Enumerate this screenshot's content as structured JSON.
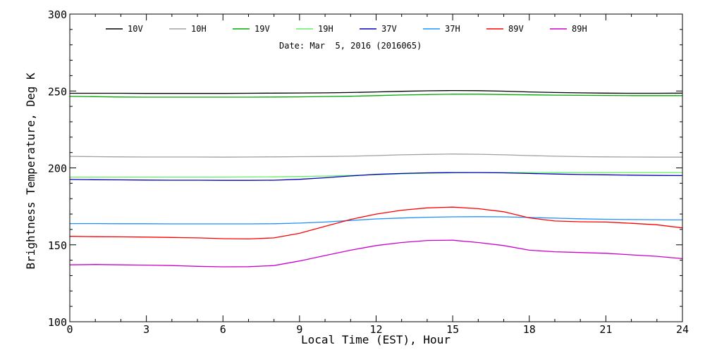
{
  "chart_data": {
    "type": "line",
    "annotation": "Date: Mar  5, 2016 (2016065)",
    "xlabel": "Local Time (EST), Hour",
    "ylabel": "Brightness Temperature, Deg K",
    "xlim": [
      0,
      24
    ],
    "ylim": [
      100,
      300
    ],
    "x_ticks": [
      0,
      3,
      6,
      9,
      12,
      15,
      18,
      21,
      24
    ],
    "y_ticks": [
      100,
      150,
      200,
      250,
      300
    ],
    "grid": false,
    "legend_position": "top",
    "x": [
      0,
      1,
      2,
      3,
      4,
      5,
      6,
      7,
      8,
      9,
      10,
      11,
      12,
      13,
      14,
      15,
      16,
      17,
      18,
      19,
      20,
      21,
      22,
      23,
      24
    ],
    "series": [
      {
        "name": "10V",
        "color": "#000000",
        "values": [
          248.5,
          248.5,
          248.5,
          248.4,
          248.4,
          248.4,
          248.4,
          248.5,
          248.6,
          248.7,
          248.8,
          249.0,
          249.4,
          249.8,
          250.1,
          250.3,
          250.2,
          249.9,
          249.4,
          249.0,
          248.8,
          248.6,
          248.5,
          248.5,
          248.6
        ]
      },
      {
        "name": "10H",
        "color": "#a0a0a0",
        "values": [
          207.5,
          207.3,
          207.2,
          207.1,
          207.1,
          207.1,
          207.0,
          207.1,
          207.2,
          207.3,
          207.4,
          207.6,
          208.0,
          208.5,
          208.8,
          209.0,
          208.9,
          208.5,
          208.0,
          207.6,
          207.3,
          207.2,
          207.1,
          207.0,
          207.0
        ]
      },
      {
        "name": "19V",
        "color": "#00aa00",
        "values": [
          246.5,
          246.3,
          246.1,
          246.0,
          246.0,
          246.0,
          246.0,
          246.0,
          246.1,
          246.2,
          246.4,
          246.6,
          247.0,
          247.4,
          247.7,
          247.9,
          247.9,
          247.7,
          247.5,
          247.3,
          247.2,
          247.1,
          247.0,
          247.0,
          247.0
        ]
      },
      {
        "name": "19H",
        "color": "#66ee66",
        "values": [
          194.0,
          194.0,
          194.0,
          194.0,
          194.0,
          194.0,
          194.0,
          194.1,
          194.2,
          194.4,
          194.7,
          195.1,
          195.6,
          196.1,
          196.5,
          196.8,
          197.0,
          197.0,
          197.0,
          197.0,
          197.0,
          197.0,
          197.0,
          197.0,
          197.0
        ]
      },
      {
        "name": "37V",
        "color": "#0000bb",
        "values": [
          192.5,
          192.3,
          192.2,
          192.1,
          192.0,
          192.0,
          191.9,
          191.9,
          192.0,
          192.6,
          193.6,
          194.8,
          195.8,
          196.4,
          196.8,
          197.0,
          197.0,
          196.8,
          196.4,
          196.0,
          195.7,
          195.5,
          195.3,
          195.1,
          195.0
        ]
      },
      {
        "name": "37H",
        "color": "#1e90ff",
        "values": [
          163.8,
          163.8,
          163.7,
          163.7,
          163.6,
          163.6,
          163.6,
          163.6,
          163.7,
          164.1,
          164.8,
          165.8,
          166.8,
          167.4,
          167.9,
          168.2,
          168.3,
          168.2,
          167.8,
          167.3,
          166.9,
          166.6,
          166.4,
          166.3,
          166.2
        ]
      },
      {
        "name": "89V",
        "color": "#ff0000",
        "values": [
          155.5,
          155.3,
          155.2,
          155.0,
          154.8,
          154.5,
          154.0,
          153.8,
          154.5,
          157.5,
          162.0,
          166.5,
          170.0,
          172.5,
          174.0,
          174.5,
          173.5,
          171.5,
          167.5,
          165.5,
          165.0,
          164.8,
          164.0,
          163.0,
          161.0
        ]
      },
      {
        "name": "89H",
        "color": "#cc00cc",
        "values": [
          137.0,
          137.2,
          137.0,
          136.8,
          136.5,
          136.0,
          135.7,
          135.8,
          136.5,
          139.5,
          143.0,
          146.5,
          149.5,
          151.5,
          152.8,
          153.0,
          151.5,
          149.5,
          146.5,
          145.5,
          145.0,
          144.5,
          143.5,
          142.5,
          141.0
        ]
      }
    ]
  }
}
